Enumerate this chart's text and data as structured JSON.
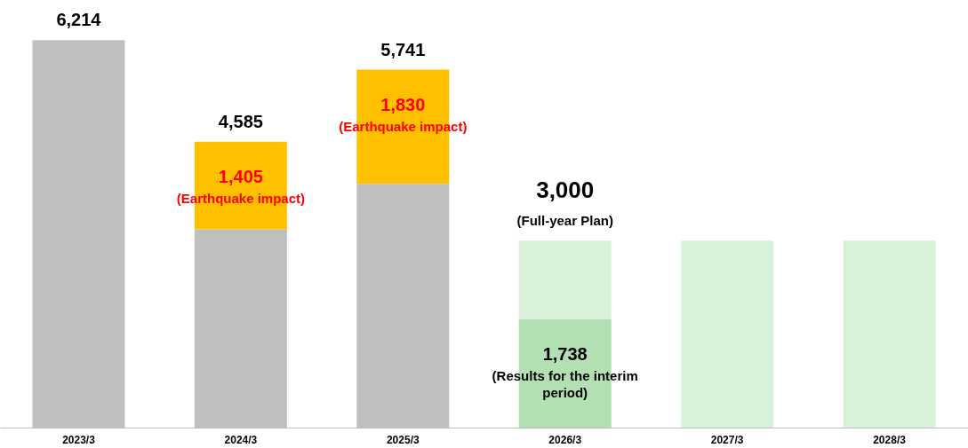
{
  "chart_data": {
    "type": "bar",
    "stacked": true,
    "grid": false,
    "categories": [
      "2023/3",
      "2024/3",
      "2025/3",
      "2026/3",
      "2027/3",
      "2028/3"
    ],
    "series": [
      {
        "color": "#bfbfbf",
        "values": [
          6214,
          3180,
          3911,
          null,
          null,
          null
        ]
      },
      {
        "color": "#ffc000",
        "values": [
          null,
          1405,
          1830,
          null,
          null,
          null
        ],
        "value_labels": [
          null,
          "1,405",
          "1,830",
          null,
          null,
          null
        ]
      },
      {
        "color": "#b3e0b3",
        "values": [
          null,
          null,
          null,
          1738,
          null,
          null
        ],
        "value_labels": [
          null,
          null,
          null,
          "1,738",
          null,
          null
        ]
      },
      {
        "color": "#d9f0d9",
        "values": [
          null,
          null,
          null,
          1262,
          3000,
          3000
        ]
      }
    ],
    "totals": [
      "6,214",
      "4,585",
      "5,741",
      "3,000",
      null,
      null
    ],
    "annotations": [
      "(Earthquake impact)",
      "(Earthquake impact)",
      "(Full-year Plan)",
      "(Results for the interim period)"
    ]
  }
}
